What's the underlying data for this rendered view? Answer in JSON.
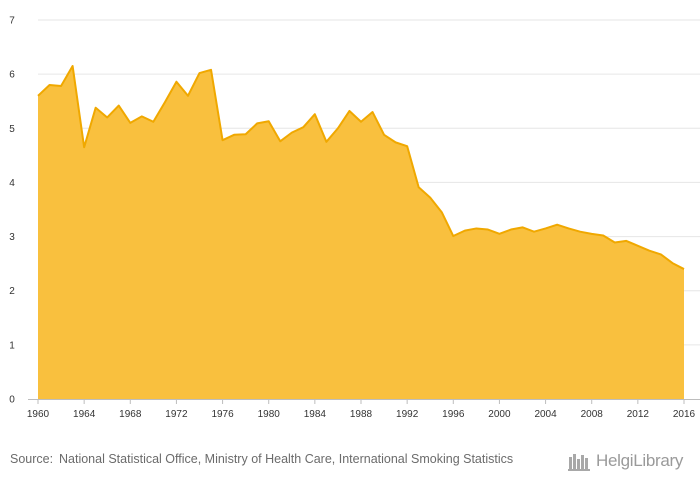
{
  "chart_data": {
    "type": "area",
    "title": "",
    "xlabel": "",
    "ylabel": "",
    "color": "#F9C03E",
    "line_color": "#F0A800",
    "grid": true,
    "legend": "none",
    "xlim": [
      1960,
      2016
    ],
    "ylim": [
      0,
      7
    ],
    "x_ticks": [
      "1960",
      "1964",
      "1968",
      "1972",
      "1976",
      "1980",
      "1984",
      "1988",
      "1992",
      "1996",
      "2000",
      "2004",
      "2008",
      "2012",
      "2016"
    ],
    "y_ticks": [
      "0",
      "1",
      "2",
      "3",
      "4",
      "5",
      "6",
      "7"
    ],
    "x": [
      1960,
      1961,
      1962,
      1963,
      1964,
      1965,
      1966,
      1967,
      1968,
      1969,
      1970,
      1971,
      1972,
      1973,
      1974,
      1975,
      1976,
      1977,
      1978,
      1979,
      1980,
      1981,
      1982,
      1983,
      1984,
      1985,
      1986,
      1987,
      1988,
      1989,
      1990,
      1991,
      1992,
      1993,
      1994,
      1995,
      1996,
      1997,
      1998,
      1999,
      2000,
      2001,
      2002,
      2003,
      2004,
      2005,
      2006,
      2007,
      2008,
      2009,
      2010,
      2011,
      2012,
      2013,
      2014,
      2015,
      2016
    ],
    "values": [
      5.6,
      5.8,
      5.78,
      6.15,
      4.65,
      5.38,
      5.2,
      5.42,
      5.1,
      5.22,
      5.12,
      5.48,
      5.86,
      5.6,
      6.02,
      6.08,
      4.78,
      4.88,
      4.89,
      5.09,
      5.13,
      4.76,
      4.92,
      5.02,
      5.26,
      4.75,
      5.0,
      5.32,
      5.12,
      5.3,
      4.88,
      4.74,
      4.67,
      3.91,
      3.72,
      3.45,
      3.01,
      3.11,
      3.15,
      3.13,
      3.05,
      3.13,
      3.17,
      3.09,
      3.15,
      3.22,
      3.15,
      3.09,
      3.05,
      3.02,
      2.89,
      2.92,
      2.83,
      2.74,
      2.67,
      2.51,
      2.4
    ]
  },
  "footer": {
    "source_prefix": "Source:",
    "source_text": "National Statistical Office, Ministry of Health Care, International Smoking Statistics"
  },
  "brand": {
    "name_part1": "Helgi",
    "name_part2": "Library"
  }
}
